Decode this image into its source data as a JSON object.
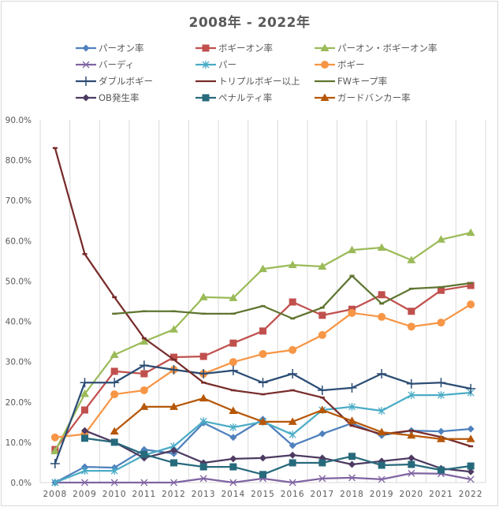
{
  "chart_data": {
    "type": "line",
    "title": "2008年 - 2022年",
    "xlabel": "",
    "ylabel": "",
    "ylim": [
      0,
      90
    ],
    "y_ticks": [
      "0.0%",
      "10.0%",
      "20.0%",
      "30.0%",
      "40.0%",
      "50.0%",
      "60.0%",
      "70.0%",
      "80.0%",
      "90.0%"
    ],
    "y_tick_values": [
      0,
      10,
      20,
      30,
      40,
      50,
      60,
      70,
      80,
      90
    ],
    "grid": "vertical",
    "legend_position": "top",
    "categories": [
      "2008",
      "2009",
      "2010",
      "2011",
      "2012",
      "2013",
      "2014",
      "2015",
      "2016",
      "2017",
      "2018",
      "2019",
      "2020",
      "2021",
      "2022"
    ],
    "series": [
      {
        "name": "パーオン率",
        "color": "#4f81bd",
        "marker": "diamond",
        "values": [
          0.0,
          3.9,
          3.7,
          8.2,
          7.2,
          14.8,
          11.2,
          15.7,
          9.2,
          12.1,
          14.7,
          11.7,
          12.9,
          12.7,
          13.3
        ]
      },
      {
        "name": "ボギーオン率",
        "color": "#c0504d",
        "marker": "square",
        "values": [
          8.2,
          18.0,
          27.6,
          27.0,
          31.1,
          31.3,
          34.6,
          37.6,
          44.8,
          41.5,
          43.0,
          46.6,
          42.5,
          47.7,
          48.9
        ]
      },
      {
        "name": "パーオン・ボギーオン率",
        "color": "#9bbb59",
        "marker": "triangle",
        "values": [
          7.8,
          22.0,
          31.7,
          35.0,
          38.0,
          46.0,
          45.8,
          53.0,
          54.0,
          53.6,
          57.7,
          58.3,
          55.2,
          60.3,
          62.0
        ]
      },
      {
        "name": "バーディ",
        "color": "#8064a2",
        "marker": "x",
        "values": [
          0.0,
          0.0,
          0.0,
          0.0,
          0.0,
          1.0,
          0.0,
          1.0,
          0.0,
          1.0,
          1.2,
          0.8,
          2.3,
          2.2,
          0.8
        ]
      },
      {
        "name": "パー",
        "color": "#4bacc6",
        "marker": "star",
        "values": [
          0.0,
          2.9,
          2.9,
          6.8,
          9.0,
          15.2,
          13.7,
          15.1,
          11.9,
          18.0,
          18.8,
          17.8,
          21.7,
          21.7,
          22.3
        ]
      },
      {
        "name": "ボギー",
        "color": "#f79646",
        "marker": "circle",
        "values": [
          11.2,
          12.0,
          21.9,
          22.9,
          28.0,
          27.0,
          29.9,
          31.9,
          32.9,
          36.6,
          42.1,
          41.1,
          38.7,
          39.7,
          44.2
        ]
      },
      {
        "name": "ダブルボギー",
        "color": "#2c4d75",
        "marker": "plus",
        "values": [
          4.7,
          24.8,
          24.8,
          29.1,
          28.0,
          27.0,
          27.8,
          24.8,
          27.0,
          22.9,
          23.5,
          27.0,
          24.5,
          24.8,
          23.3
        ]
      },
      {
        "name": "トリプルボギー以上",
        "color": "#772c2a",
        "marker": "dash",
        "values": [
          83.0,
          56.7,
          46.0,
          35.8,
          30.5,
          24.8,
          22.9,
          21.9,
          22.9,
          21.1,
          14.1,
          12.0,
          12.9,
          11.3,
          9.0
        ]
      },
      {
        "name": "FWキープ率",
        "color": "#5f7530",
        "marker": "dash",
        "values": [
          null,
          null,
          41.9,
          42.5,
          42.5,
          41.9,
          41.9,
          43.8,
          40.7,
          43.4,
          51.3,
          44.4,
          48.1,
          48.5,
          49.5
        ]
      },
      {
        "name": "OB発生率",
        "color": "#4d3b62",
        "marker": "diamond",
        "values": [
          null,
          12.9,
          10.0,
          6.1,
          8.0,
          4.9,
          5.9,
          6.1,
          6.8,
          6.1,
          4.5,
          5.3,
          6.1,
          3.5,
          2.7
        ]
      },
      {
        "name": "ペナルティ率",
        "color": "#276a7c",
        "marker": "square",
        "values": [
          null,
          11.0,
          10.0,
          7.0,
          4.9,
          3.9,
          3.9,
          2.0,
          4.9,
          4.9,
          6.5,
          4.3,
          4.5,
          3.1,
          4.1
        ]
      },
      {
        "name": "ガードバンカー率",
        "color": "#b65708",
        "marker": "triangle",
        "values": [
          null,
          null,
          12.7,
          18.8,
          18.8,
          20.9,
          17.8,
          15.1,
          15.1,
          18.0,
          15.3,
          12.5,
          11.7,
          10.8,
          10.8
        ]
      }
    ]
  }
}
